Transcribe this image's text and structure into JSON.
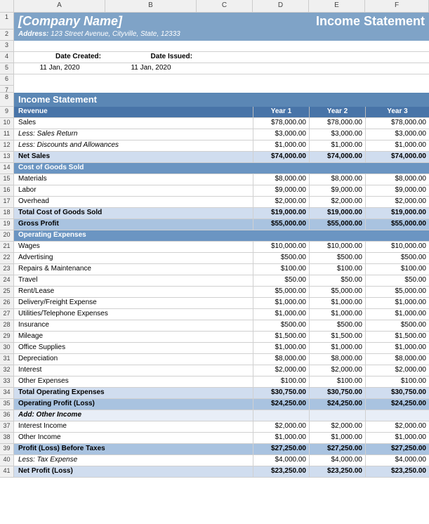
{
  "columns": [
    "A",
    "B",
    "C",
    "D",
    "E",
    "F"
  ],
  "banner": {
    "company": "[Company Name]",
    "doc_title": "Income Statement",
    "address_label": "Address:",
    "address": "123 Street Avenue, Cityville, State, 12333"
  },
  "dates": {
    "created_label": "Date Created:",
    "created_value": "11 Jan, 2020",
    "issued_label": "Date Issued:",
    "issued_value": "11 Jan, 2020"
  },
  "section_title": "Income Statement",
  "years": {
    "y1": "Year 1",
    "y2": "Year 2",
    "y3": "Year 3"
  },
  "revenue": {
    "header": "Revenue",
    "sales": {
      "label": "Sales",
      "v1": "$78,000.00",
      "v2": "$78,000.00",
      "v3": "$78,000.00"
    },
    "sales_return": {
      "label": "Less: Sales Return",
      "v1": "$3,000.00",
      "v2": "$3,000.00",
      "v3": "$3,000.00"
    },
    "discounts": {
      "label": "Less: Discounts and Allowances",
      "v1": "$1,000.00",
      "v2": "$1,000.00",
      "v3": "$1,000.00"
    },
    "net_sales": {
      "label": "Net Sales",
      "v1": "$74,000.00",
      "v2": "$74,000.00",
      "v3": "$74,000.00"
    }
  },
  "cogs": {
    "header": "Cost of Goods Sold",
    "materials": {
      "label": "Materials",
      "v1": "$8,000.00",
      "v2": "$8,000.00",
      "v3": "$8,000.00"
    },
    "labor": {
      "label": "Labor",
      "v1": "$9,000.00",
      "v2": "$9,000.00",
      "v3": "$9,000.00"
    },
    "overhead": {
      "label": "Overhead",
      "v1": "$2,000.00",
      "v2": "$2,000.00",
      "v3": "$2,000.00"
    },
    "total": {
      "label": "Total Cost of Goods Sold",
      "v1": "$19,000.00",
      "v2": "$19,000.00",
      "v3": "$19,000.00"
    },
    "gross_profit": {
      "label": "Gross Profit",
      "v1": "$55,000.00",
      "v2": "$55,000.00",
      "v3": "$55,000.00"
    }
  },
  "opex": {
    "header": "Operating Expenses",
    "wages": {
      "label": "Wages",
      "v1": "$10,000.00",
      "v2": "$10,000.00",
      "v3": "$10,000.00"
    },
    "advertising": {
      "label": "Advertising",
      "v1": "$500.00",
      "v2": "$500.00",
      "v3": "$500.00"
    },
    "repairs": {
      "label": "Repairs & Maintenance",
      "v1": "$100.00",
      "v2": "$100.00",
      "v3": "$100.00"
    },
    "travel": {
      "label": "Travel",
      "v1": "$50.00",
      "v2": "$50.00",
      "v3": "$50.00"
    },
    "rent": {
      "label": "Rent/Lease",
      "v1": "$5,000.00",
      "v2": "$5,000.00",
      "v3": "$5,000.00"
    },
    "delivery": {
      "label": "Delivery/Freight Expense",
      "v1": "$1,000.00",
      "v2": "$1,000.00",
      "v3": "$1,000.00"
    },
    "utilities": {
      "label": "Utilities/Telephone Expenses",
      "v1": "$1,000.00",
      "v2": "$1,000.00",
      "v3": "$1,000.00"
    },
    "insurance": {
      "label": "Insurance",
      "v1": "$500.00",
      "v2": "$500.00",
      "v3": "$500.00"
    },
    "mileage": {
      "label": "Mileage",
      "v1": "$1,500.00",
      "v2": "$1,500.00",
      "v3": "$1,500.00"
    },
    "office": {
      "label": "Office Supplies",
      "v1": "$1,000.00",
      "v2": "$1,000.00",
      "v3": "$1,000.00"
    },
    "depreciation": {
      "label": "Depreciation",
      "v1": "$8,000.00",
      "v2": "$8,000.00",
      "v3": "$8,000.00"
    },
    "interest": {
      "label": "Interest",
      "v1": "$2,000.00",
      "v2": "$2,000.00",
      "v3": "$2,000.00"
    },
    "other": {
      "label": "Other Expenses",
      "v1": "$100.00",
      "v2": "$100.00",
      "v3": "$100.00"
    },
    "total": {
      "label": "Total Operating Expenses",
      "v1": "$30,750.00",
      "v2": "$30,750.00",
      "v3": "$30,750.00"
    },
    "op_profit": {
      "label": "Operating Profit (Loss)",
      "v1": "$24,250.00",
      "v2": "$24,250.00",
      "v3": "$24,250.00"
    }
  },
  "other_income": {
    "header": "Add: Other Income",
    "interest": {
      "label": "Interest Income",
      "v1": "$2,000.00",
      "v2": "$2,000.00",
      "v3": "$2,000.00"
    },
    "other": {
      "label": "Other Income",
      "v1": "$1,000.00",
      "v2": "$1,000.00",
      "v3": "$1,000.00"
    },
    "before_tax": {
      "label": "Profit (Loss) Before Taxes",
      "v1": "$27,250.00",
      "v2": "$27,250.00",
      "v3": "$27,250.00"
    },
    "tax": {
      "label": "Less: Tax Expense",
      "v1": "$4,000.00",
      "v2": "$4,000.00",
      "v3": "$4,000.00"
    },
    "net": {
      "label": "Net Profit (Loss)",
      "v1": "$23,250.00",
      "v2": "$23,250.00",
      "v3": "$23,250.00"
    }
  },
  "colors": {
    "banner_bg": "#7fa3c7",
    "section_bg": "#5b87b5",
    "row_head_bg": "#4874a8",
    "sub_head_bg": "#6b95c2",
    "bold_bg": "#d0ddef",
    "bold_bg2": "#a9c3e0"
  }
}
